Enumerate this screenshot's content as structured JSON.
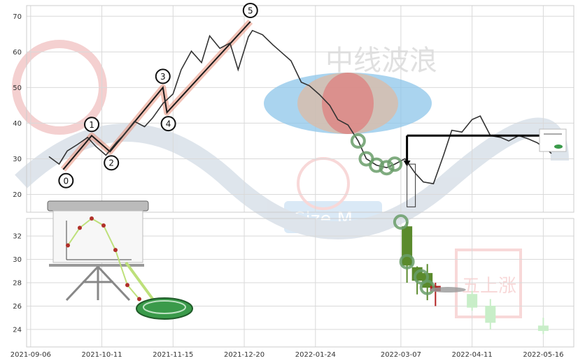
{
  "chart_data": [
    {
      "type": "line",
      "panel": "price",
      "ylim": [
        15,
        73
      ],
      "yticks": [
        "20",
        "30",
        "40",
        "50",
        "60",
        "70"
      ],
      "grid": true,
      "series": [
        {
          "x": [
            "2021-09-15",
            "2021-09-20",
            "2021-09-24",
            "2021-09-29",
            "2021-10-04",
            "2021-10-08",
            "2021-10-13",
            "2021-10-18",
            "2021-10-22",
            "2021-10-27",
            "2021-11-01",
            "2021-11-05",
            "2021-11-10",
            "2021-11-15",
            "2021-11-19",
            "2021-11-24",
            "2021-11-29",
            "2021-12-03",
            "2021-12-08",
            "2021-12-13",
            "2021-12-17",
            "2021-12-22",
            "2021-12-24",
            "2021-12-29",
            "2022-01-03",
            "2022-01-07",
            "2022-01-12",
            "2022-01-17",
            "2022-01-21",
            "2022-01-26",
            "2022-01-31",
            "2022-02-04",
            "2022-02-09",
            "2022-02-14",
            "2022-02-18",
            "2022-02-23",
            "2022-02-28",
            "2022-03-04",
            "2022-03-09",
            "2022-03-14",
            "2022-03-18",
            "2022-03-23",
            "2022-03-28",
            "2022-04-01",
            "2022-04-06",
            "2022-04-11",
            "2022-04-15",
            "2022-04-20",
            "2022-04-25",
            "2022-04-29",
            "2022-05-04",
            "2022-05-09",
            "2022-05-13",
            "2022-05-18",
            "2022-05-20"
          ],
          "values": [
            30.6,
            28.5,
            32.2,
            34.0,
            36.0,
            33.5,
            31.0,
            34.5,
            36.8,
            40.5,
            39.0,
            41.5,
            45.5,
            48.2,
            55.0,
            60.2,
            57.0,
            64.5,
            61.0,
            62.5,
            55.0,
            64.2,
            66.0,
            64.8,
            62.0,
            60.0,
            57.5,
            51.5,
            50.5,
            48.0,
            45.0,
            41.0,
            39.5,
            35.0,
            30.0,
            28.2,
            27.5,
            28.5,
            30.0,
            26.0,
            23.5,
            23.0,
            31.0,
            38.0,
            37.5,
            41.0,
            42.0,
            36.5,
            36.0,
            35.0,
            36.5,
            35.5,
            34.5,
            32.5,
            31.5
          ]
        }
      ],
      "wave_points": [
        {
          "label": "0",
          "x": "2021-09-22",
          "y": 27.0
        },
        {
          "label": "1",
          "x": "2021-10-06",
          "y": 36.5
        },
        {
          "label": "2",
          "x": "2021-10-15",
          "y": 32.0
        },
        {
          "label": "3",
          "x": "2021-11-10",
          "y": 50.0
        },
        {
          "label": "4",
          "x": "2021-11-12",
          "y": 43.0
        },
        {
          "label": "5",
          "x": "2021-12-23",
          "y": 68.5
        }
      ],
      "resistance_level": {
        "y": 36.5,
        "from": "2022-03-10",
        "to": "2022-05-16"
      }
    },
    {
      "type": "bar",
      "panel": "candles",
      "ylim": [
        22.5,
        33.5
      ],
      "yticks": [
        "24",
        "26",
        "28",
        "30",
        "32"
      ],
      "grid": true,
      "candles": [
        {
          "x": "2022-03-10",
          "open": 32.8,
          "close": 29.5,
          "high": 33.2,
          "low": 28.0,
          "color": "#5a8a2c"
        },
        {
          "x": "2022-03-15",
          "open": 29.3,
          "close": 28.2,
          "high": 29.4,
          "low": 27.0,
          "color": "#5a8a2c"
        },
        {
          "x": "2022-03-20",
          "open": 28.8,
          "close": 27.6,
          "high": 29.6,
          "low": 26.5,
          "color": "#5a8a2c"
        },
        {
          "x": "2022-03-24",
          "open": 27.7,
          "close": 27.3,
          "high": 28.0,
          "low": 26.0,
          "color": "#b22222"
        },
        {
          "x": "2022-04-11",
          "open": 27.0,
          "close": 25.9,
          "high": 27.3,
          "low": 25.6,
          "color": "#c8eec8"
        },
        {
          "x": "2022-04-20",
          "open": 26.0,
          "close": 24.6,
          "high": 26.6,
          "low": 24.0,
          "color": "#c8eec8"
        },
        {
          "x": "2022-05-16",
          "open": 24.3,
          "close": 23.9,
          "high": 25.0,
          "low": 23.6,
          "color": "#c8eec8"
        }
      ],
      "inset_line": [
        31.2,
        32.7,
        33.5,
        32.9,
        30.8,
        27.8,
        26.6
      ]
    }
  ],
  "x_axis": {
    "range": [
      "2021-09-04",
      "2022-05-31"
    ],
    "ticks": [
      "2021-09-06",
      "2021-10-11",
      "2021-11-15",
      "2021-12-20",
      "2022-01-24",
      "2022-03-07",
      "2022-04-11",
      "2022-05-16"
    ]
  },
  "watermark": {
    "text": "中线波浪",
    "badge": "Size M",
    "stamp": "五上涨",
    "stamp_text": "五上涨"
  },
  "colors": {
    "price_line": "#333333",
    "wave_line": "#1a1a1a",
    "wave_band": "#e8907a",
    "ellipse_outer": "#8ec5ea",
    "ellipse_inner": "#e07a7a",
    "ring": "#6a9e6a",
    "resistance": "#000000",
    "grid": "#d9d9d9"
  }
}
